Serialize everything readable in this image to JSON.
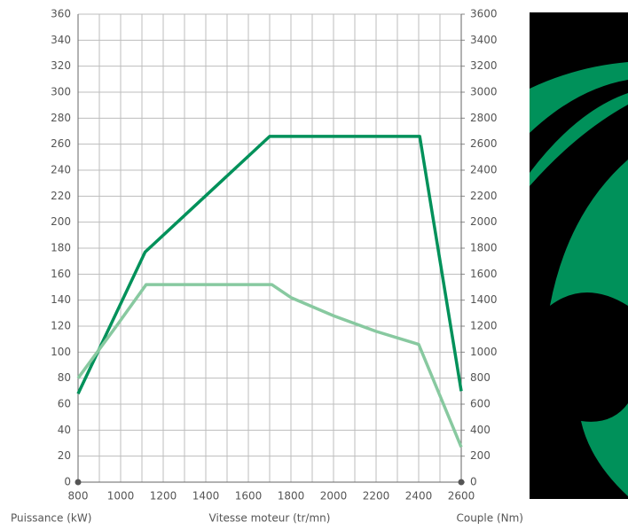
{
  "chart_data": {
    "type": "line",
    "xlabel": "Vitesse moteur (tr/mn)",
    "ylabel": "Puissance (kW)",
    "y2label": "Couple (Nm)",
    "xlim": [
      800,
      2600
    ],
    "xticks": [
      800,
      1000,
      1200,
      1400,
      1600,
      1800,
      2000,
      2200,
      2400,
      2600
    ],
    "xgrid_minor": [
      900,
      1100,
      1300,
      1500,
      1700,
      1900,
      2100,
      2300,
      2500
    ],
    "ylim": [
      0,
      360
    ],
    "yticks": [
      0,
      20,
      40,
      60,
      80,
      100,
      120,
      140,
      160,
      180,
      200,
      220,
      240,
      260,
      280,
      300,
      320,
      340,
      360
    ],
    "y2lim": [
      0,
      3600
    ],
    "y2ticks": [
      0,
      200,
      400,
      600,
      800,
      1000,
      1200,
      1400,
      1600,
      1800,
      2000,
      2200,
      2400,
      2600,
      2800,
      3000,
      3200,
      3400,
      3600
    ],
    "grid": true,
    "series": [
      {
        "color": "#00915a",
        "x": [
          800,
          1115,
          1700,
          2405,
          2600
        ],
        "values": [
          68,
          177,
          266,
          266,
          70
        ]
      },
      {
        "color": "#88c9a0",
        "x": [
          800,
          980,
          1120,
          1710,
          1800,
          2000,
          2200,
          2400,
          2600
        ],
        "values": [
          80,
          120,
          152,
          152,
          142,
          128,
          116,
          106,
          27
        ]
      }
    ]
  }
}
